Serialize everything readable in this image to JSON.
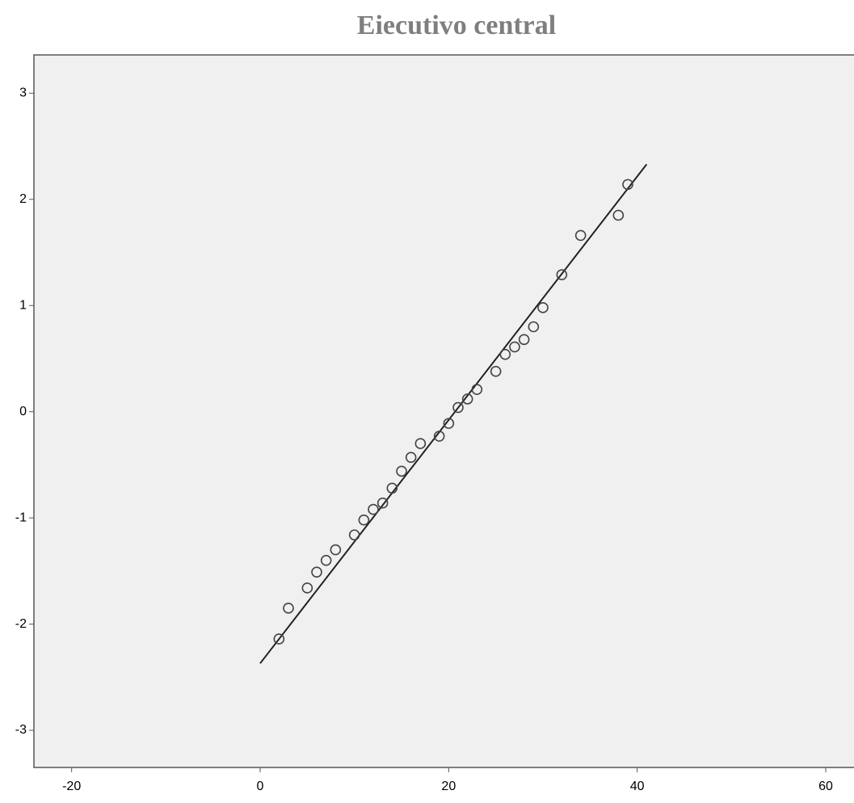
{
  "chart_data": {
    "type": "scatter",
    "title": "Eiecutivo central",
    "x": [
      2,
      3,
      5,
      6,
      7,
      8,
      10,
      11,
      12,
      13,
      14,
      15,
      16,
      17,
      19,
      20,
      21,
      22,
      23,
      25,
      26,
      27,
      28,
      29,
      30,
      32,
      34,
      38,
      39
    ],
    "series": [
      {
        "color": "#444444",
        "values": [
          -2.14,
          -1.85,
          -1.66,
          -1.51,
          -1.4,
          -1.3,
          -1.16,
          -1.02,
          -0.92,
          -0.86,
          -0.72,
          -0.56,
          -0.43,
          -0.3,
          -0.23,
          -0.11,
          0.04,
          0.12,
          0.21,
          0.38,
          0.54,
          0.61,
          0.68,
          0.8,
          0.98,
          1.29,
          1.66,
          1.85,
          2.14
        ]
      }
    ],
    "reference_line": {
      "color": "#222222",
      "x": [
        0,
        41
      ],
      "values": [
        -2.37,
        2.33
      ]
    },
    "xlim": [
      -24,
      63
    ],
    "xticks": [
      -20,
      0,
      20,
      40,
      60
    ],
    "ylim": [
      -3.35,
      3.36
    ],
    "yticks": [
      -3,
      -2,
      -1,
      0,
      1,
      2,
      3
    ],
    "grid": false
  }
}
